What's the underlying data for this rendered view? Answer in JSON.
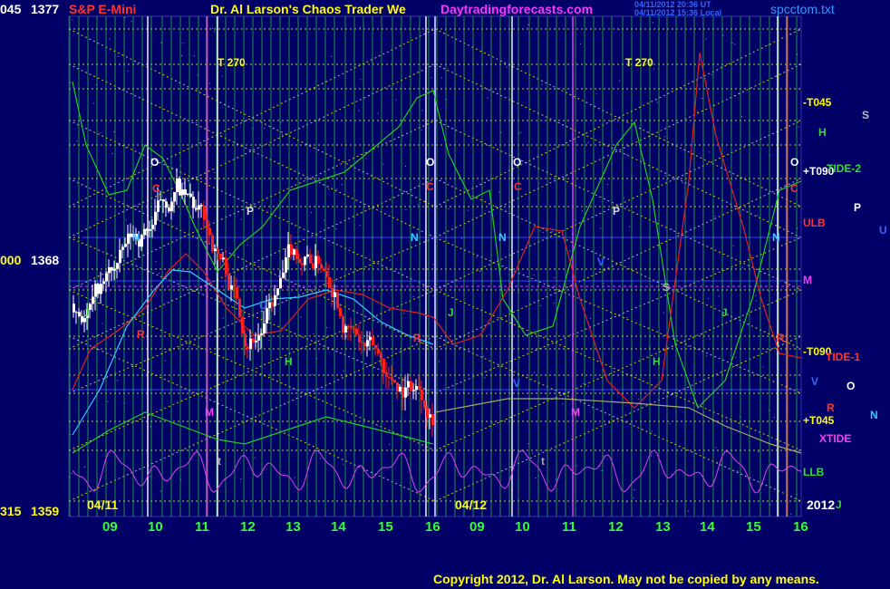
{
  "header": {
    "instrument": "S&P E-Mini",
    "title": "Dr. Al Larson's Chaos Trader We",
    "site": "Daytradingforecasts.com",
    "stamp_line1": "04/11/2012 20:36 UT",
    "stamp_line2": "04/11/2012 15:36 Local",
    "file": "spcctom.txt"
  },
  "footer": {
    "copyright": "Copyright 2012, Dr. Al Larson. May not be copied by any means."
  },
  "colors": {
    "background": "#000066",
    "grid_vertical": "#33cc33",
    "grid_horizontal": "#cccc33",
    "price_up": "#ffffff",
    "price_down": "#ff2020",
    "green_curve": "#22cc22",
    "red_curve": "#dd2222",
    "cyan_curve": "#33ccff",
    "magenta_curve": "#dd44ee"
  },
  "chart_data": {
    "type": "line",
    "title": "S&P E-Mini",
    "y_axis": {
      "labels": [
        {
          "left": "045",
          "right": "1377",
          "value": 1377
        },
        {
          "left": "000",
          "right": "1368",
          "value": 1368
        },
        {
          "left": "315",
          "right": "1359",
          "value": 1359
        }
      ],
      "range": [
        1359,
        1377
      ]
    },
    "x_axis": {
      "days": [
        "04/11",
        "04/12"
      ],
      "hours": [
        "09",
        "10",
        "11",
        "12",
        "13",
        "14",
        "15",
        "16",
        "09",
        "10",
        "11",
        "12",
        "13",
        "14",
        "15",
        "16"
      ],
      "year": "2012"
    },
    "right_levels": [
      {
        "label": "-T045",
        "value": 1374.5
      },
      {
        "label": "+T090",
        "value": 1372.2
      },
      {
        "label": "ULB",
        "value": 1369.6
      },
      {
        "label": "M",
        "value": 1367.4
      },
      {
        "label": "-T090",
        "value": 1365.0
      },
      {
        "label": "+T045",
        "value": 1362.2
      },
      {
        "label": "LLB",
        "value": 1360.7
      }
    ],
    "legend": [
      {
        "label": "S",
        "color": "#bbbbbb"
      },
      {
        "label": "H",
        "color": "#33dd33"
      },
      {
        "label": "TIDE-2",
        "color": "#33dd33"
      },
      {
        "label": "P",
        "color": "#ffffff"
      },
      {
        "label": "U",
        "color": "#3366ff"
      },
      {
        "label": "TIDE-1",
        "color": "#ff3333"
      },
      {
        "label": "V",
        "color": "#3366ff"
      },
      {
        "label": "O",
        "color": "#ffffff"
      },
      {
        "label": "R",
        "color": "#ff3333"
      },
      {
        "label": "N",
        "color": "#33ccff"
      },
      {
        "label": "XTIDE",
        "color": "#ee44ee"
      },
      {
        "label": "J",
        "color": "#33dd33"
      }
    ],
    "markers": [
      {
        "text": "T  270",
        "color": "#ffff00"
      },
      {
        "text": "T  270",
        "color": "#ffff00"
      },
      {
        "text": "O",
        "color": "#ffffff"
      },
      {
        "text": "O",
        "color": "#ffffff"
      },
      {
        "text": "O",
        "color": "#ffffff"
      },
      {
        "text": "O",
        "color": "#ffffff"
      },
      {
        "text": "C",
        "color": "#ff3333"
      },
      {
        "text": "C",
        "color": "#ff3333"
      },
      {
        "text": "C",
        "color": "#ff3333"
      },
      {
        "text": "C",
        "color": "#ff3333"
      },
      {
        "text": "N",
        "color": "#33ccff"
      },
      {
        "text": "N",
        "color": "#33ccff"
      },
      {
        "text": "N",
        "color": "#33ccff"
      },
      {
        "text": "N",
        "color": "#33ccff"
      },
      {
        "text": "P",
        "color": "#dddddd"
      },
      {
        "text": "P",
        "color": "#dddddd"
      },
      {
        "text": "M",
        "color": "#ee44ee"
      },
      {
        "text": "M",
        "color": "#ee44ee"
      },
      {
        "text": "H",
        "color": "#33dd33"
      },
      {
        "text": "H",
        "color": "#33dd33"
      },
      {
        "text": "J",
        "color": "#33dd33"
      },
      {
        "text": "J",
        "color": "#33dd33"
      },
      {
        "text": "J",
        "color": "#33dd33"
      },
      {
        "text": "R",
        "color": "#ff3333"
      },
      {
        "text": "R",
        "color": "#ff3333"
      },
      {
        "text": "R",
        "color": "#ff3333"
      },
      {
        "text": "S",
        "color": "#aaaaaa"
      },
      {
        "text": "V",
        "color": "#3366ff"
      },
      {
        "text": "V",
        "color": "#3366ff"
      },
      {
        "text": "t",
        "color": "#aaaaaa"
      },
      {
        "text": "t",
        "color": "#aaaaaa"
      },
      {
        "text": "U",
        "color": "#3366ff"
      }
    ]
  }
}
